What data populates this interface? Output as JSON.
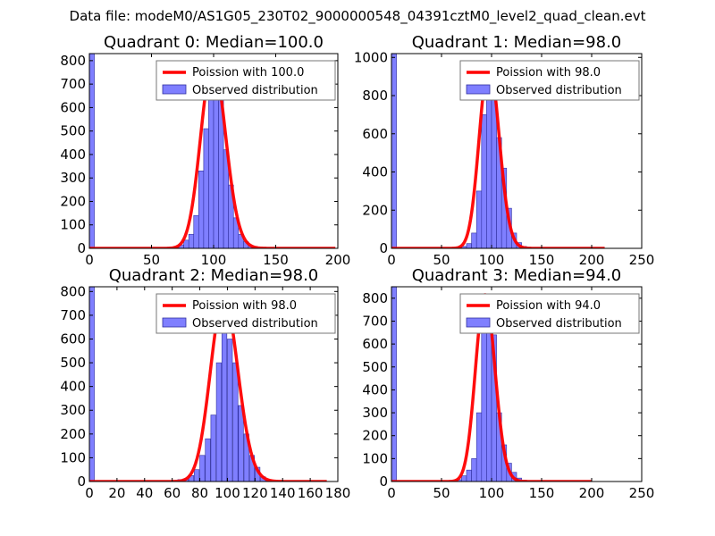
{
  "figure_title": "Data file: modeM0/AS1G05_230T02_9000000548_04391cztM0_level2_quad_clean.evt",
  "colors": {
    "poisson_line": "#ff0000",
    "hist_fill": "#7f7fff",
    "hist_edge": "#3030a0"
  },
  "chart_data": [
    {
      "type": "bar",
      "title": "Quadrant 0: Median=100.0",
      "xlim": [
        0,
        200
      ],
      "ylim": [
        0,
        830
      ],
      "xticks": [
        0,
        50,
        100,
        150,
        200
      ],
      "yticks": [
        0,
        100,
        200,
        300,
        400,
        500,
        600,
        700,
        800
      ],
      "zero_bin": {
        "x": 0,
        "width": 4,
        "value": 830
      },
      "bin_width": 4,
      "bins": [
        [
          60,
          2
        ],
        [
          64,
          5
        ],
        [
          68,
          8
        ],
        [
          72,
          15
        ],
        [
          76,
          35
        ],
        [
          80,
          60
        ],
        [
          84,
          140
        ],
        [
          88,
          330
        ],
        [
          92,
          510
        ],
        [
          96,
          720
        ],
        [
          100,
          790
        ],
        [
          104,
          640
        ],
        [
          108,
          420
        ],
        [
          112,
          270
        ],
        [
          116,
          130
        ],
        [
          120,
          60
        ],
        [
          124,
          28
        ],
        [
          128,
          10
        ],
        [
          132,
          3
        ]
      ],
      "poisson": {
        "label": "Poission with 100.0",
        "mu": 100.0,
        "peak": 795,
        "x_range": [
          0,
          198
        ]
      },
      "legend": [
        "Poission with 100.0",
        "Observed distribution"
      ]
    },
    {
      "type": "bar",
      "title": "Quadrant 1: Median=98.0",
      "xlim": [
        0,
        250
      ],
      "ylim": [
        0,
        1020
      ],
      "xticks": [
        0,
        50,
        100,
        150,
        200,
        250
      ],
      "yticks": [
        0,
        200,
        400,
        600,
        800,
        1000
      ],
      "zero_bin": {
        "x": 0,
        "width": 5,
        "value": 1020
      },
      "bin_width": 5,
      "bins": [
        [
          65,
          3
        ],
        [
          70,
          10
        ],
        [
          75,
          25
        ],
        [
          80,
          80
        ],
        [
          85,
          300
        ],
        [
          90,
          700
        ],
        [
          95,
          960
        ],
        [
          100,
          870
        ],
        [
          105,
          580
        ],
        [
          110,
          420
        ],
        [
          115,
          210
        ],
        [
          120,
          80
        ],
        [
          125,
          30
        ],
        [
          130,
          10
        ],
        [
          135,
          3
        ]
      ],
      "poisson": {
        "label": "Poission with 98.0",
        "mu": 98.0,
        "peak": 970,
        "x_range": [
          0,
          213
        ]
      },
      "legend": [
        "Poission with 98.0",
        "Observed distribution"
      ]
    },
    {
      "type": "bar",
      "title": "Quadrant 2: Median=98.0",
      "xlim": [
        0,
        180
      ],
      "ylim": [
        0,
        820
      ],
      "xticks": [
        0,
        20,
        40,
        60,
        80,
        100,
        120,
        140,
        160,
        180
      ],
      "yticks": [
        0,
        100,
        200,
        300,
        400,
        500,
        600,
        700,
        800
      ],
      "zero_bin": {
        "x": 0,
        "width": 3.6,
        "value": 820
      },
      "bin_width": 3.6,
      "bins": [
        [
          64,
          8
        ],
        [
          68,
          12
        ],
        [
          72,
          25
        ],
        [
          76,
          50
        ],
        [
          80,
          110
        ],
        [
          84,
          180
        ],
        [
          88,
          280
        ],
        [
          92,
          500
        ],
        [
          96,
          780
        ],
        [
          100,
          600
        ],
        [
          104,
          500
        ],
        [
          108,
          320
        ],
        [
          112,
          200
        ],
        [
          116,
          110
        ],
        [
          120,
          60
        ],
        [
          124,
          20
        ],
        [
          128,
          5
        ]
      ],
      "poisson": {
        "label": "Poission with 98.0",
        "mu": 98.0,
        "peak": 775,
        "x_range": [
          0,
          172
        ]
      },
      "legend": [
        "Poission with 98.0",
        "Observed distribution"
      ]
    },
    {
      "type": "bar",
      "title": "Quadrant 3: Median=94.0",
      "xlim": [
        0,
        250
      ],
      "ylim": [
        0,
        850
      ],
      "xticks": [
        0,
        50,
        100,
        150,
        200,
        250
      ],
      "yticks": [
        0,
        100,
        200,
        300,
        400,
        500,
        600,
        700,
        800
      ],
      "zero_bin": {
        "x": 0,
        "width": 5,
        "value": 850
      },
      "bin_width": 5,
      "bins": [
        [
          60,
          3
        ],
        [
          65,
          8
        ],
        [
          70,
          25
        ],
        [
          75,
          50
        ],
        [
          80,
          100
        ],
        [
          85,
          300
        ],
        [
          90,
          690
        ],
        [
          95,
          760
        ],
        [
          100,
          640
        ],
        [
          105,
          300
        ],
        [
          110,
          160
        ],
        [
          115,
          80
        ],
        [
          120,
          40
        ],
        [
          125,
          15
        ],
        [
          130,
          5
        ]
      ],
      "poisson": {
        "label": "Poission with 94.0",
        "mu": 94.0,
        "peak": 815,
        "x_range": [
          0,
          200
        ]
      },
      "legend": [
        "Poission with 94.0",
        "Observed distribution"
      ]
    }
  ]
}
